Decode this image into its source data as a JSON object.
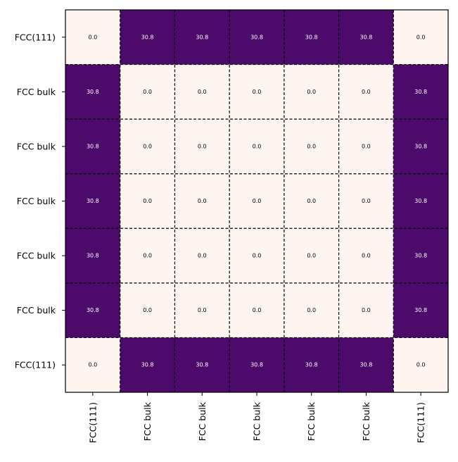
{
  "chart_data": {
    "type": "heatmap",
    "title": "",
    "xlabel": "",
    "ylabel": "",
    "x_labels": [
      "FCC(111)",
      "FCC bulk",
      "FCC bulk",
      "FCC bulk",
      "FCC bulk",
      "FCC bulk",
      "FCC(111)"
    ],
    "y_labels": [
      "FCC(111)",
      "FCC bulk",
      "FCC bulk",
      "FCC bulk",
      "FCC bulk",
      "FCC bulk",
      "FCC(111)"
    ],
    "values": [
      [
        0.0,
        30.8,
        30.8,
        30.8,
        30.8,
        30.8,
        0.0
      ],
      [
        30.8,
        0.0,
        0.0,
        0.0,
        0.0,
        0.0,
        30.8
      ],
      [
        30.8,
        0.0,
        0.0,
        0.0,
        0.0,
        0.0,
        30.8
      ],
      [
        30.8,
        0.0,
        0.0,
        0.0,
        0.0,
        0.0,
        30.8
      ],
      [
        30.8,
        0.0,
        0.0,
        0.0,
        0.0,
        0.0,
        30.8
      ],
      [
        30.8,
        0.0,
        0.0,
        0.0,
        0.0,
        0.0,
        30.8
      ],
      [
        0.0,
        30.8,
        30.8,
        30.8,
        30.8,
        30.8,
        0.0
      ]
    ],
    "value_labels": [
      [
        "0.0",
        "30.8",
        "30.8",
        "30.8",
        "30.8",
        "30.8",
        "0.0"
      ],
      [
        "30.8",
        "0.0",
        "0.0",
        "0.0",
        "0.0",
        "0.0",
        "30.8"
      ],
      [
        "30.8",
        "0.0",
        "0.0",
        "0.0",
        "0.0",
        "0.0",
        "30.8"
      ],
      [
        "30.8",
        "0.0",
        "0.0",
        "0.0",
        "0.0",
        "0.0",
        "30.8"
      ],
      [
        "30.8",
        "0.0",
        "0.0",
        "0.0",
        "0.0",
        "0.0",
        "30.8"
      ],
      [
        "30.8",
        "0.0",
        "0.0",
        "0.0",
        "0.0",
        "0.0",
        "30.8"
      ],
      [
        "0.0",
        "30.8",
        "30.8",
        "30.8",
        "30.8",
        "30.8",
        "0.0"
      ]
    ],
    "value_range": [
      0.0,
      30.8
    ],
    "colormap": {
      "low": "#fff5f0",
      "high": "#4c0a6b"
    },
    "text_colors": {
      "on_low": "#000000",
      "on_high": "#ffffff"
    },
    "grid": true,
    "grid_style": "dashed",
    "grid_color": "#000000",
    "colorbar": false
  }
}
